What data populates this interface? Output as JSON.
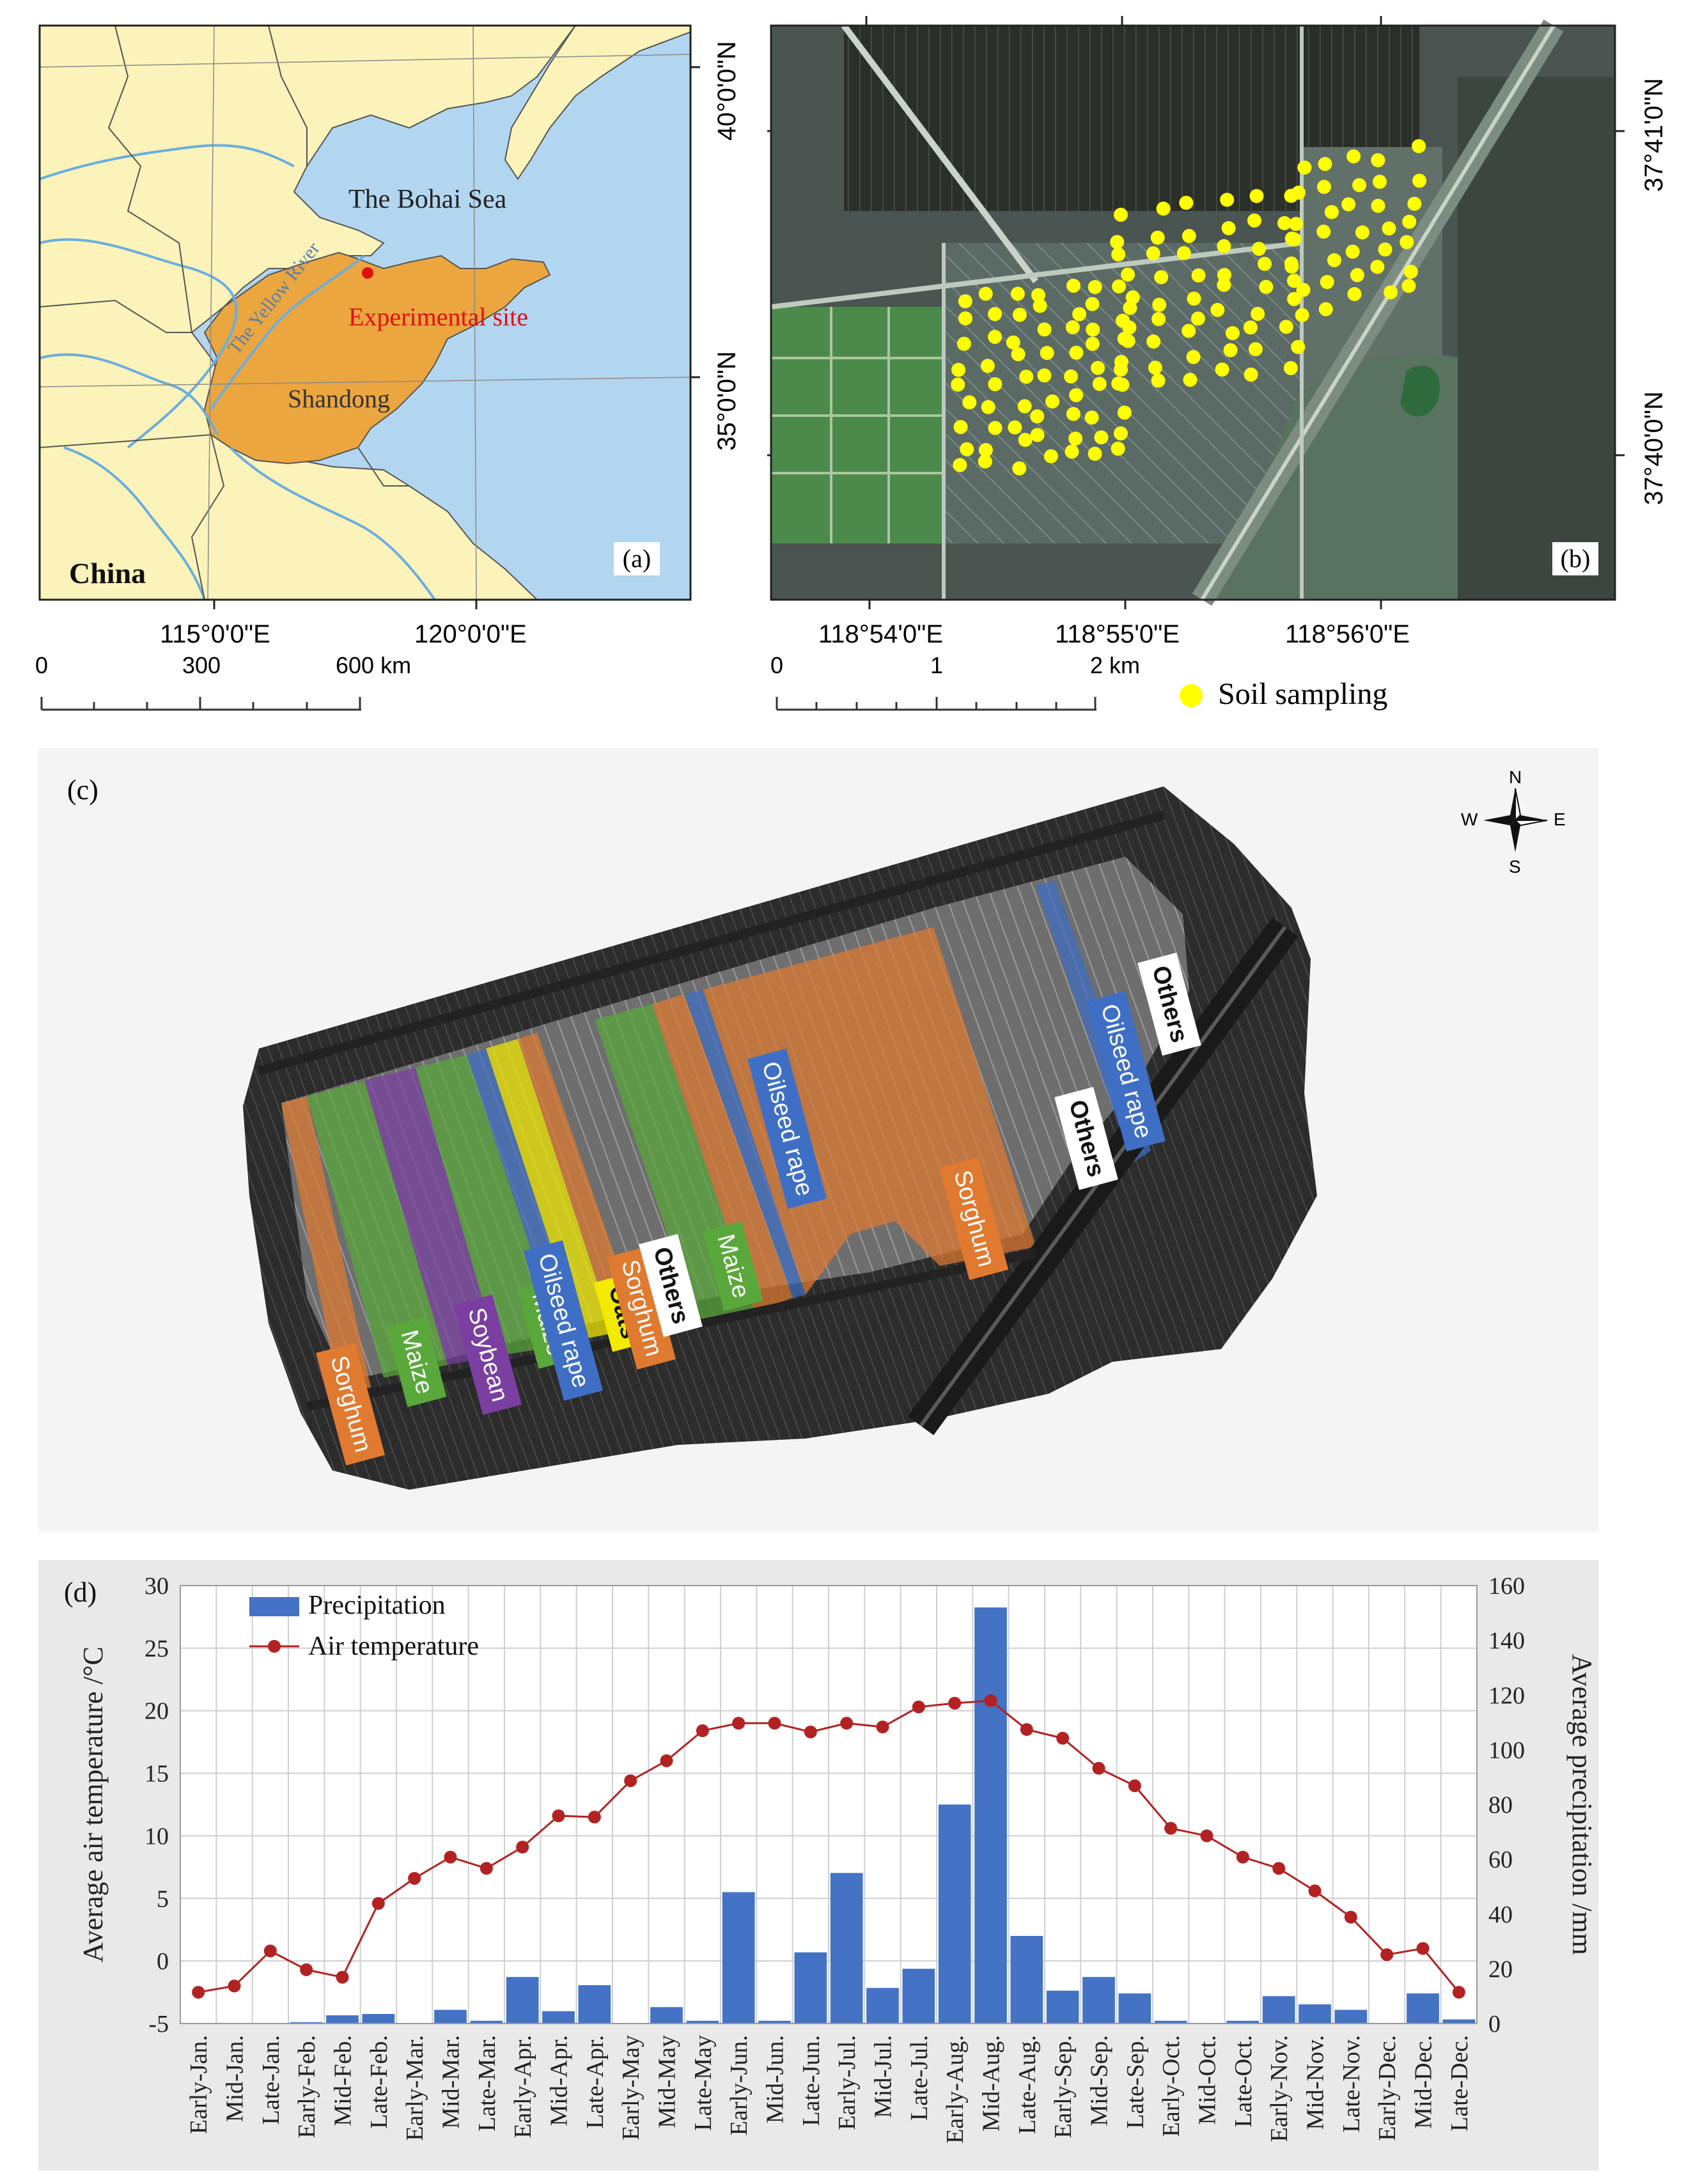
{
  "panel_a": {
    "label": "(a)",
    "sea": "The Bohai Sea",
    "river": "The Yellow River",
    "site": "Experimental site",
    "province": "Shandong",
    "country": "China",
    "lat_labels": [
      "40°0'0\"N",
      "35°0'0\"N"
    ],
    "lon_labels": [
      "115°0'0\"E",
      "120°0'0\"E"
    ],
    "scale_ticks": [
      "0",
      "300",
      "600 km"
    ],
    "colors": {
      "sea": "#b3d6f0",
      "land": "#fbf3b9",
      "shandong": "#eba640",
      "river": "#6aaee0",
      "site": "#e01010"
    }
  },
  "panel_b": {
    "label": "(b)",
    "lat_labels": [
      "37°41'0\"N",
      "37°40'0\"N"
    ],
    "lon_labels": [
      "118°54'0\"E",
      "118°55'0\"E",
      "118°56'0\"E"
    ],
    "scale_ticks": [
      "0",
      "1",
      "2 km"
    ],
    "legend": "Soil sampling",
    "colors": {
      "sample": "#ffff00"
    }
  },
  "panel_c": {
    "label": "(c)",
    "compass": {
      "n": "N",
      "s": "S",
      "e": "E",
      "w": "W"
    },
    "crop_labels": [
      "Sorghum",
      "Maize",
      "Soybean",
      "Maize",
      "Oilseed rape",
      "Oats",
      "Sorghum",
      "Others",
      "Maize",
      "Oilseed rape",
      "Sorghum",
      "Others",
      "Oilseed rape",
      "Others"
    ],
    "colors": {
      "sorghum": "#e07a30",
      "maize": "#5aa83c",
      "soybean": "#7a3fa0",
      "rape": "#3f6fc4",
      "oats": "#f2ea00",
      "others": "#ffffff"
    }
  },
  "chart_data": {
    "type": "bar",
    "label": "(d)",
    "categories": [
      "Early-Jan.",
      "Mid-Jan.",
      "Late-Jan.",
      "Early-Feb.",
      "Mid-Feb.",
      "Late-Feb.",
      "Early-Mar.",
      "Mid-Mar.",
      "Late-Mar.",
      "Early-Apr.",
      "Mid-Apr.",
      "Late-Apr.",
      "Early-May",
      "Mid-May",
      "Late-May",
      "Early-Jun.",
      "Mid-Jun.",
      "Late-Jun.",
      "Early-Jul.",
      "Mid-Jul.",
      "Late-Jul.",
      "Early-Aug.",
      "Mid-Aug.",
      "Late-Aug.",
      "Early-Sep.",
      "Mid-Sep.",
      "Late-Sep.",
      "Early-Oct.",
      "Mid-Oct.",
      "Late-Oct.",
      "Early-Nov.",
      "Mid-Nov.",
      "Late-Nov.",
      "Early-Dec.",
      "Mid-Dec.",
      "Late-Dec."
    ],
    "series": [
      {
        "name": "Precipitation",
        "axis": "right",
        "type": "bar",
        "color": "#4472c4",
        "values": [
          0,
          0,
          0,
          0.5,
          3,
          3.5,
          0,
          5,
          1,
          17,
          4.5,
          14,
          0,
          6,
          1,
          48,
          1,
          26,
          55,
          13,
          20,
          80,
          152,
          32,
          12,
          17,
          11,
          1,
          0,
          1,
          10,
          7,
          5,
          0,
          11,
          1.5
        ]
      },
      {
        "name": "Air temperature",
        "axis": "left",
        "type": "line",
        "color": "#b22222",
        "values": [
          -2.5,
          -2.0,
          0.8,
          -0.7,
          -1.3,
          4.6,
          6.6,
          8.3,
          7.4,
          9.1,
          11.6,
          11.5,
          14.4,
          16.0,
          18.4,
          19.0,
          19.0,
          18.3,
          19.0,
          18.7,
          20.3,
          20.6,
          20.8,
          18.5,
          17.8,
          15.4,
          14.0,
          10.6,
          10.0,
          8.3,
          7.4,
          5.6,
          3.5,
          0.5,
          1.0,
          -2.5
        ]
      }
    ],
    "ylabel_left": "Average air temperature /°C",
    "ylabel_right": "Average precipitation /mm",
    "ylim_left": [
      -5,
      30
    ],
    "ylim_right": [
      0,
      160
    ],
    "left_ticks": [
      "30",
      "25",
      "20",
      "15",
      "10",
      "5",
      "0",
      "-5"
    ],
    "right_ticks": [
      "160",
      "140",
      "120",
      "100",
      "80",
      "60",
      "40",
      "20",
      "0"
    ],
    "grid": true,
    "legend_position": "top-left"
  }
}
